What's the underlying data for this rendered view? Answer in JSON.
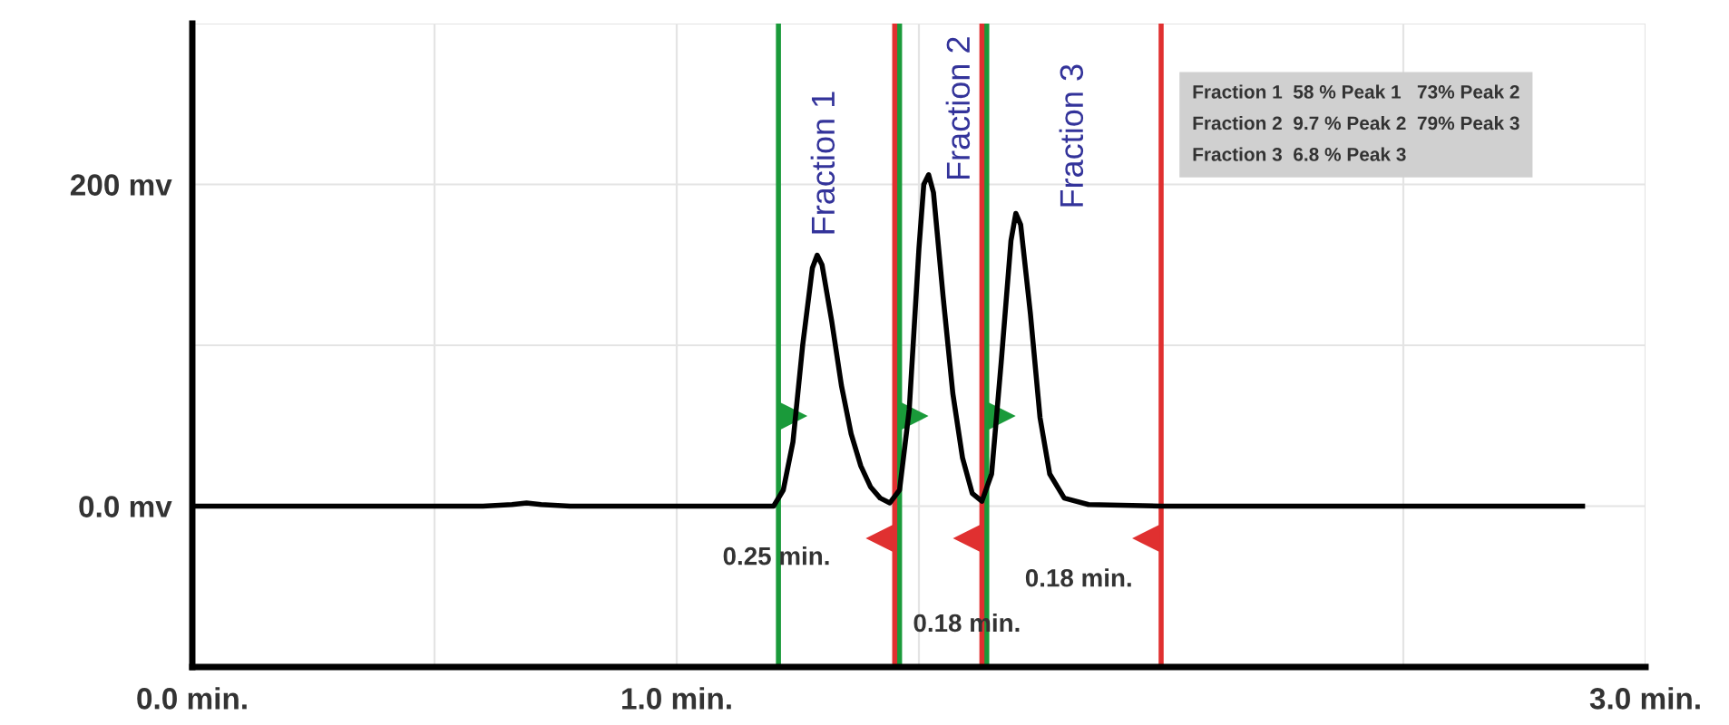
{
  "chart_data": {
    "type": "line",
    "x": [
      0,
      0.6,
      0.66,
      0.69,
      0.72,
      0.78,
      1.1,
      1.2,
      1.22,
      1.24,
      1.26,
      1.28,
      1.29,
      1.3,
      1.32,
      1.34,
      1.36,
      1.38,
      1.4,
      1.42,
      1.44,
      1.46,
      1.48,
      1.5,
      1.51,
      1.52,
      1.53,
      1.55,
      1.57,
      1.59,
      1.61,
      1.63,
      1.65,
      1.67,
      1.69,
      1.7,
      1.71,
      1.73,
      1.75,
      1.77,
      1.8,
      1.85,
      2.0,
      2.87
    ],
    "series": [
      {
        "color": "#000000",
        "values": [
          0,
          0,
          1,
          2,
          1,
          0,
          0,
          0,
          10,
          40,
          100,
          148,
          156,
          150,
          115,
          75,
          45,
          25,
          12,
          5,
          2,
          10,
          60,
          160,
          200,
          206,
          195,
          130,
          70,
          30,
          8,
          3,
          20,
          90,
          165,
          182,
          175,
          120,
          55,
          20,
          5,
          1,
          0,
          0
        ]
      }
    ],
    "xlim": [
      0,
      3.0
    ],
    "ylim": [
      -100,
      300
    ],
    "xticks": [
      {
        "value": 0,
        "label": "0.0 min."
      },
      {
        "value": 0.5,
        "label": null
      },
      {
        "value": 1.0,
        "label": "1.0 min."
      },
      {
        "value": 1.5,
        "label": null
      },
      {
        "value": 2.0,
        "label": null
      },
      {
        "value": 2.5,
        "label": null
      },
      {
        "value": 3.0,
        "label": "3.0 min."
      }
    ],
    "yticks": [
      {
        "value": 0,
        "label": "0.0 mv"
      },
      {
        "value": 100,
        "label": null
      },
      {
        "value": 200,
        "label": "200 mv"
      },
      {
        "value": 300,
        "label": null
      }
    ],
    "grid": true,
    "marker": "none",
    "line_style": "solid",
    "ref_lines": [
      {
        "axis": "x",
        "value": 1.21,
        "color": "#1a9a3a"
      },
      {
        "axis": "x",
        "value": 1.46,
        "color": "#1a9a3a"
      },
      {
        "axis": "x",
        "value": 1.64,
        "color": "#1a9a3a"
      },
      {
        "axis": "x",
        "value": 1.45,
        "color": "#e03030"
      },
      {
        "axis": "x",
        "value": 1.63,
        "color": "#e03030"
      },
      {
        "axis": "x",
        "value": 2.0,
        "color": "#e03030"
      }
    ],
    "annotations": [
      "Fraction 1",
      "Fraction 2",
      "Fraction 3",
      "0.25 min.",
      "0.18 min.",
      "0.18 min.",
      "Fraction 1  58 % Peak 1   73% Peak 2",
      "Fraction 2  9.7 % Peak 2  79% Peak 3",
      "Fraction 3  6.8 % Peak 3"
    ]
  }
}
